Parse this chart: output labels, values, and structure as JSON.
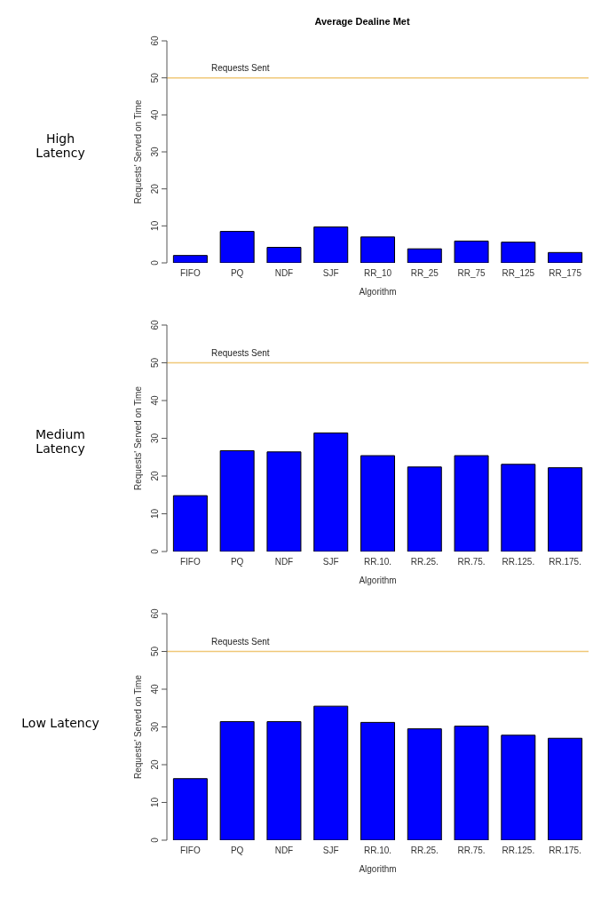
{
  "chart_data": [
    {
      "type": "bar",
      "title": "Average Dealine Met",
      "annotations": [
        "High Latency"
      ],
      "xlabel": "Algorithm",
      "ylabel": "Requests' Served on Time",
      "categories": [
        "FIFO",
        "PQ",
        "NDF",
        "SJF",
        "RR_10",
        "RR_25",
        "RR_75",
        "RR_125",
        "RR_175"
      ],
      "values": [
        2,
        8.5,
        4.2,
        9.7,
        7,
        3.8,
        5.9,
        5.6,
        2.8
      ],
      "color": "#0000ff",
      "ylim": [
        0,
        60
      ],
      "yticks": [
        0,
        10,
        20,
        30,
        40,
        50,
        60
      ],
      "grid": false,
      "ref_lines": [
        {
          "axis": "y",
          "value": 50,
          "label": "Requests Sent",
          "color": "#f0c878"
        }
      ]
    },
    {
      "type": "bar",
      "annotations": [
        "Medium Latency"
      ],
      "xlabel": "Algorithm",
      "ylabel": "Requests' Served on Time",
      "categories": [
        "FIFO",
        "PQ",
        "NDF",
        "SJF",
        "RR.10.",
        "RR.25.",
        "RR.75.",
        "RR.125.",
        "RR.175."
      ],
      "values": [
        14.8,
        26.7,
        26.4,
        31.4,
        25.4,
        22.4,
        25.4,
        23.1,
        22.2
      ],
      "color": "#0000ff",
      "ylim": [
        0,
        60
      ],
      "yticks": [
        0,
        10,
        20,
        30,
        40,
        50,
        60
      ],
      "grid": false,
      "ref_lines": [
        {
          "axis": "y",
          "value": 50,
          "label": "Requests Sent",
          "color": "#f0c878"
        }
      ]
    },
    {
      "type": "bar",
      "annotations": [
        "Low Latency"
      ],
      "xlabel": "Algorithm",
      "ylabel": "Requests' Served on Time",
      "categories": [
        "FIFO",
        "PQ",
        "NDF",
        "SJF",
        "RR.10.",
        "RR.25.",
        "RR.75.",
        "RR.125.",
        "RR.175."
      ],
      "values": [
        16.3,
        31.4,
        31.4,
        35.5,
        31.2,
        29.5,
        30.2,
        27.8,
        27
      ],
      "color": "#0000ff",
      "ylim": [
        0,
        60
      ],
      "yticks": [
        0,
        10,
        20,
        30,
        40,
        50,
        60
      ],
      "grid": false,
      "ref_lines": [
        {
          "axis": "y",
          "value": 50,
          "label": "Requests Sent",
          "color": "#f0c878"
        }
      ]
    }
  ]
}
